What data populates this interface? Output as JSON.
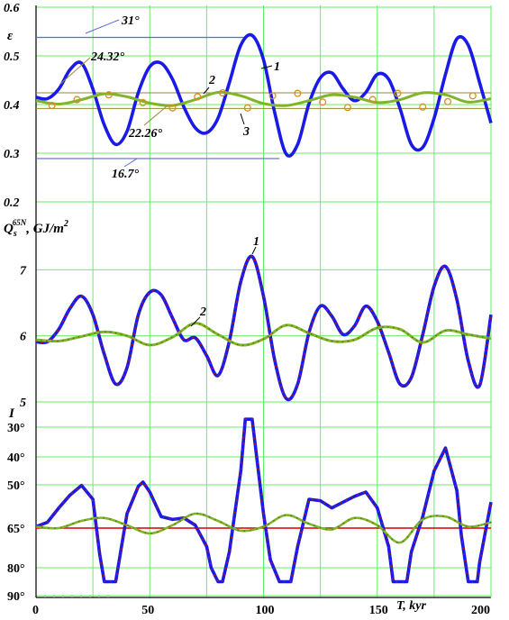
{
  "colors": {
    "grid": "#66ee66",
    "curve_primary": "#1a1ae6",
    "curve_secondary": "#7fb52a",
    "marker_primary": "#cc1111",
    "marker_secondary": "#d98c20",
    "ref_blue": "#5a6adc",
    "ref_olive": "#9a8a30",
    "ref_red": "#d40000"
  },
  "chart_data": [
    {
      "type": "line",
      "ylabel": "ε",
      "x_ticks": [
        0,
        50,
        100,
        150,
        200
      ],
      "y_ticks": [
        "0.6",
        "0.5",
        "0.4",
        "0.3",
        "0.2"
      ],
      "ylim": [
        0.2,
        0.6
      ],
      "xlim": [
        0,
        200
      ],
      "grid": true,
      "series": [
        {
          "name": "1",
          "x": [
            0,
            5,
            10,
            15,
            20,
            25,
            30,
            35,
            40,
            45,
            50,
            55,
            60,
            65,
            70,
            75,
            80,
            85,
            90,
            95,
            100,
            105,
            110,
            115,
            120,
            125,
            130,
            135,
            140,
            145,
            150,
            155,
            160,
            165,
            170,
            175,
            180,
            185,
            190,
            195,
            200
          ],
          "values": [
            0.415,
            0.412,
            0.432,
            0.472,
            0.485,
            0.432,
            0.358,
            0.318,
            0.345,
            0.425,
            0.478,
            0.485,
            0.452,
            0.395,
            0.352,
            0.342,
            0.372,
            0.445,
            0.522,
            0.542,
            0.492,
            0.382,
            0.298,
            0.318,
            0.402,
            0.455,
            0.465,
            0.432,
            0.408,
            0.425,
            0.462,
            0.452,
            0.392,
            0.318,
            0.312,
            0.372,
            0.462,
            0.535,
            0.522,
            0.445,
            0.362
          ]
        },
        {
          "name": "2",
          "x": [
            0,
            10,
            20,
            30,
            40,
            50,
            60,
            70,
            80,
            90,
            100,
            110,
            120,
            130,
            140,
            150,
            160,
            170,
            180,
            190,
            200
          ],
          "values": [
            0.408,
            0.401,
            0.41,
            0.422,
            0.416,
            0.403,
            0.398,
            0.41,
            0.425,
            0.418,
            0.402,
            0.398,
            0.408,
            0.42,
            0.415,
            0.404,
            0.41,
            0.424,
            0.42,
            0.405,
            0.412
          ]
        },
        {
          "name": "3",
          "x": [
            7,
            18,
            32,
            47,
            60,
            71,
            82,
            93,
            104,
            115,
            126,
            137,
            148,
            159,
            170,
            181,
            192
          ],
          "values": [
            0.398,
            0.41,
            0.42,
            0.404,
            0.393,
            0.416,
            0.424,
            0.393,
            0.418,
            0.423,
            0.405,
            0.394,
            0.41,
            0.423,
            0.395,
            0.406,
            0.418
          ]
        }
      ],
      "reference_lines": [
        {
          "label": "31°",
          "value": 0.538,
          "x_end": 92
        },
        {
          "label": "16.7°",
          "value": 0.289,
          "x_end": 107
        },
        {
          "label": "24.32°",
          "value": 0.424,
          "x_end": 200
        },
        {
          "label": "22.26°",
          "value": 0.392,
          "x_end": 200
        }
      ],
      "curve_labels": [
        "1",
        "2",
        "3"
      ]
    },
    {
      "type": "line",
      "ylabel_main": "Q",
      "ylabel_sub": "s",
      "ylabel_sup": "65N",
      "ylabel_units": ", GJ/m",
      "ylabel_units_sup": "2",
      "y_ticks": [
        "7",
        "6",
        "5"
      ],
      "ylim": [
        5.0,
        8.0
      ],
      "grid": true,
      "series": [
        {
          "name": "1",
          "x": [
            0,
            5,
            10,
            15,
            20,
            25,
            30,
            35,
            40,
            45,
            50,
            55,
            60,
            65,
            70,
            75,
            80,
            85,
            90,
            95,
            100,
            105,
            110,
            115,
            120,
            125,
            130,
            135,
            140,
            145,
            150,
            155,
            160,
            165,
            170,
            175,
            180,
            185,
            190,
            195,
            200
          ],
          "values": [
            5.91,
            5.91,
            6.1,
            6.42,
            6.6,
            6.32,
            5.72,
            5.27,
            5.52,
            6.32,
            6.66,
            6.62,
            6.27,
            5.94,
            5.97,
            5.7,
            5.4,
            5.92,
            6.82,
            7.2,
            6.6,
            5.62,
            5.05,
            5.27,
            6.05,
            6.45,
            6.3,
            6.02,
            6.15,
            6.45,
            6.22,
            5.75,
            5.27,
            5.37,
            6.02,
            6.75,
            7.05,
            6.55,
            5.62,
            5.25,
            6.32
          ]
        },
        {
          "name": "2",
          "x": [
            0,
            10,
            20,
            30,
            40,
            50,
            60,
            70,
            80,
            90,
            100,
            110,
            120,
            130,
            140,
            150,
            160,
            170,
            180,
            190,
            200
          ],
          "values": [
            5.94,
            5.92,
            5.99,
            6.06,
            6.0,
            5.86,
            5.98,
            6.19,
            6.02,
            5.86,
            5.95,
            6.16,
            6.04,
            5.92,
            5.94,
            6.12,
            6.1,
            5.9,
            6.08,
            6.02,
            5.96
          ]
        }
      ],
      "curve_labels": [
        "1",
        "2"
      ]
    },
    {
      "type": "line",
      "xlabel": "T, kyr",
      "x_ticks": [
        0,
        50,
        100,
        150,
        200
      ],
      "y_top_label": "I",
      "y_ticks": [
        "30°",
        "40°",
        "50°",
        "65°",
        "80°",
        "90°"
      ],
      "y_tick_values": [
        30,
        40,
        50,
        65,
        80,
        90
      ],
      "ylim": [
        25,
        90
      ],
      "grid": true,
      "series": [
        {
          "name": "1",
          "x": [
            0,
            5,
            10,
            15,
            20,
            25,
            28,
            30,
            35,
            37,
            40,
            45,
            47,
            50,
            55,
            60,
            65,
            70,
            75,
            77,
            80,
            82,
            85,
            90,
            92,
            95,
            97,
            100,
            103,
            107,
            110,
            112,
            115,
            120,
            125,
            130,
            135,
            140,
            145,
            150,
            155,
            157,
            160,
            163,
            165,
            170,
            175,
            180,
            185,
            187,
            190,
            194,
            195,
            200
          ],
          "values": [
            64.5,
            63.0,
            58.0,
            53.5,
            50.2,
            55.0,
            75.0,
            85.0,
            85.0,
            75.0,
            60.0,
            50.5,
            49.0,
            52.5,
            61.0,
            62.0,
            61.5,
            64.0,
            72.0,
            80.0,
            85.0,
            85.0,
            74.0,
            45.0,
            28.0,
            28.0,
            40.0,
            60.0,
            77.0,
            85.0,
            85.0,
            85.0,
            72.0,
            55.0,
            55.5,
            58.0,
            56.0,
            54.0,
            52.5,
            58.0,
            72.0,
            85.0,
            85.0,
            85.0,
            74.0,
            61.0,
            45.0,
            37.0,
            52.0,
            68.0,
            85.0,
            85.0,
            78.0,
            56.0
          ]
        },
        {
          "name": "2",
          "x": [
            0,
            10,
            20,
            30,
            40,
            50,
            60,
            70,
            80,
            90,
            100,
            110,
            120,
            130,
            140,
            150,
            160,
            170,
            180,
            190,
            200
          ],
          "values": [
            64.5,
            65.0,
            62.5,
            61.5,
            64.0,
            67.0,
            64.0,
            60.0,
            62.5,
            66.0,
            64.5,
            60.5,
            63.5,
            65.5,
            61.5,
            64.0,
            70.5,
            62.0,
            61.0,
            64.5,
            63.0
          ]
        }
      ],
      "reference_lines": [
        {
          "label": "",
          "value": 65,
          "x_end": 200
        }
      ]
    }
  ]
}
